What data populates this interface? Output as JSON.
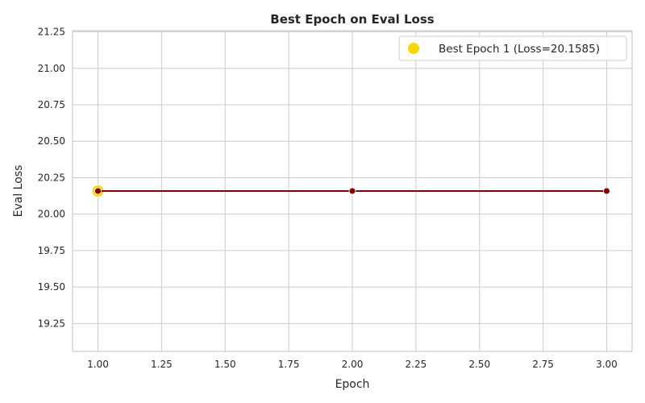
{
  "chart_data": {
    "type": "line",
    "title": "Best Epoch on Eval Loss",
    "xlabel": "Epoch",
    "ylabel": "Eval Loss",
    "xlim": [
      0.9,
      3.1
    ],
    "ylim": [
      19.0585,
      21.2585
    ],
    "xticks": [
      1.0,
      1.25,
      1.5,
      1.75,
      2.0,
      2.25,
      2.5,
      2.75,
      3.0
    ],
    "xtick_labels": [
      "1.00",
      "1.25",
      "1.50",
      "1.75",
      "2.00",
      "2.25",
      "2.50",
      "2.75",
      "3.00"
    ],
    "yticks": [
      19.25,
      19.5,
      19.75,
      20.0,
      20.25,
      20.5,
      20.75,
      21.0,
      21.25
    ],
    "ytick_labels": [
      "19.25",
      "19.50",
      "19.75",
      "20.00",
      "20.25",
      "20.50",
      "20.75",
      "21.00",
      "21.25"
    ],
    "grid": true,
    "series": [
      {
        "x": [
          1,
          2,
          3
        ],
        "y": [
          20.1585,
          20.1585,
          20.1585
        ],
        "color": "#8b0000"
      }
    ],
    "highlight": {
      "name": "Best Epoch 1 (Loss=20.1585)",
      "x": 1,
      "y": 20.1585,
      "color": "#ffd700"
    },
    "legend": {
      "position": "top-right",
      "entries": [
        "Best Epoch 1 (Loss=20.1585)"
      ]
    }
  }
}
